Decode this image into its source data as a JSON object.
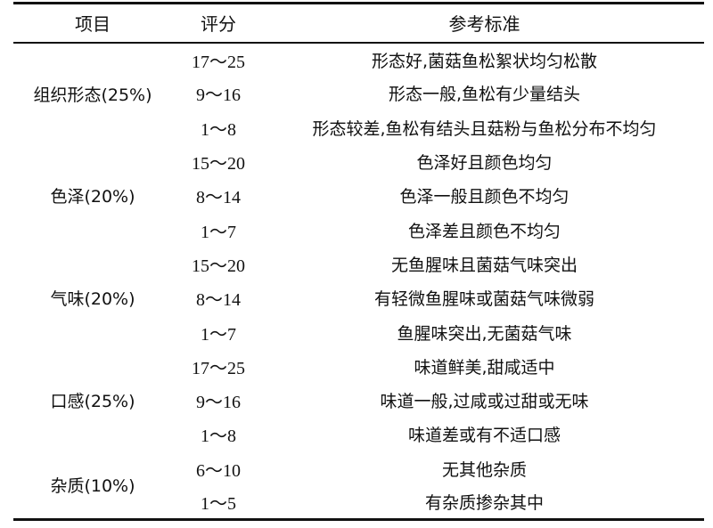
{
  "header": {
    "item": "项目",
    "score": "评分",
    "criteria": "参考标准"
  },
  "groups": [
    {
      "item": "组织形态(25%)",
      "rows": [
        {
          "score": "17～25",
          "criteria": "形态好,菌菇鱼松絮状均匀松散"
        },
        {
          "score": "9～16",
          "criteria": "形态一般,鱼松有少量结头"
        },
        {
          "score": "1～8",
          "criteria": "形态较差,鱼松有结头且菇粉与鱼松分布不均匀"
        }
      ]
    },
    {
      "item": "色泽(20%)",
      "rows": [
        {
          "score": "15～20",
          "criteria": "色泽好且颜色均匀"
        },
        {
          "score": "8～14",
          "criteria": "色泽一般且颜色不均匀"
        },
        {
          "score": "1～7",
          "criteria": "色泽差且颜色不均匀"
        }
      ]
    },
    {
      "item": "气味(20%)",
      "rows": [
        {
          "score": "15～20",
          "criteria": "无鱼腥味且菌菇气味突出"
        },
        {
          "score": "8～14",
          "criteria": "有轻微鱼腥味或菌菇气味微弱"
        },
        {
          "score": "1～7",
          "criteria": "鱼腥味突出,无菌菇气味"
        }
      ]
    },
    {
      "item": "口感(25%)",
      "rows": [
        {
          "score": "17～25",
          "criteria": "味道鲜美,甜咸适中"
        },
        {
          "score": "9～16",
          "criteria": "味道一般,过咸或过甜或无味"
        },
        {
          "score": "1～8",
          "criteria": "味道差或有不适口感"
        }
      ]
    },
    {
      "item": "杂质(10%)",
      "rows": [
        {
          "score": "6～10",
          "criteria": "无其他杂质"
        },
        {
          "score": "1～5",
          "criteria": "有杂质掺杂其中"
        }
      ]
    }
  ]
}
